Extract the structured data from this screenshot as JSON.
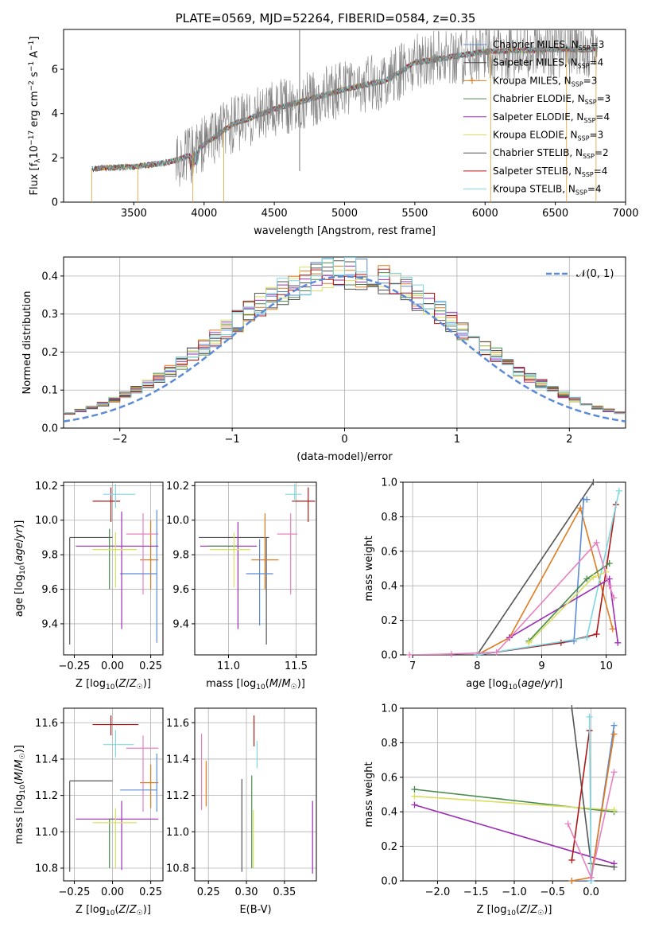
{
  "page_title": "PLATE=0569, MJD=52264, FIBERID=0584, z=0.35",
  "colors": {
    "Chabrier MILES": "#5b8bd6",
    "Salpeter MILES": "#4c4c4c",
    "Kroupa MILES": "#e07b20",
    "Chabrier ELODIE": "#4a8a4a",
    "Salpeter ELODIE": "#9b2db5",
    "Kroupa ELODIE": "#d8e060",
    "Chabrier STELIB": "#555555",
    "Salpeter STELIB": "#b01818",
    "Kroupa STELIB": "#7fd8e0",
    "pink": "#e880c0",
    "gaussian": "#5b8bd6",
    "grid": "#b0b0b0"
  },
  "legend_spectrum": [
    "Chabrier MILES, N_SSP=3",
    "Salpeter MILES, N_SSP=4",
    "Kroupa MILES, N_SSP=3",
    "Chabrier ELODIE, N_SSP=3",
    "Salpeter ELODIE, N_SSP=4",
    "Kroupa ELODIE, N_SSP=3",
    "Chabrier STELIB, N_SSP=2",
    "Salpeter STELIB, N_SSP=4",
    "Kroupa STELIB, N_SSP=4"
  ],
  "legend_hist": "𝒩(0, 1)",
  "chart_data": [
    {
      "id": "spectrum",
      "type": "line",
      "title": "PLATE=0569, MJD=52264, FIBERID=0584, z=0.35",
      "xlabel": "wavelength [Angstrom, rest frame]",
      "ylabel": "Flux [f_λ 10^-17 erg cm^-2 s^-1 A^-1]",
      "xlim": [
        3000,
        7000
      ],
      "ylim": [
        0,
        7.8
      ],
      "xticks": [
        3500,
        4000,
        4500,
        5000,
        5500,
        6000,
        6500,
        7000
      ],
      "yticks": [
        0,
        2,
        4,
        6
      ],
      "continuum": {
        "x": [
          3200,
          3300,
          3500,
          3700,
          3800,
          3900,
          4000,
          4200,
          4500,
          5000,
          5300,
          5500,
          6000,
          6500,
          6800
        ],
        "y": [
          1.5,
          1.55,
          1.6,
          1.75,
          1.9,
          2.1,
          2.6,
          3.5,
          4.2,
          5.1,
          5.5,
          6.3,
          6.8,
          6.9,
          6.9
        ]
      },
      "grid": false
    },
    {
      "id": "residual-hist",
      "type": "line",
      "xlabel": "(data-model)/error",
      "ylabel": "Normed distribution",
      "xlim": [
        -2.5,
        2.5
      ],
      "ylim": [
        0,
        0.45
      ],
      "xticks": [
        -2,
        -1,
        0,
        1,
        2
      ],
      "yticks": [
        0.0,
        0.1,
        0.2,
        0.3,
        0.4
      ],
      "grid": true,
      "bins": 50,
      "series": [
        {
          "name": "𝒩(0, 1)",
          "function": "gaussian",
          "mean": 0,
          "sigma": 1
        }
      ]
    },
    {
      "id": "age-vs-Z",
      "type": "scatter",
      "xlabel": "Z [log10(Z/Z☉)]",
      "ylabel": "age [log10(age/yr)]",
      "xlim": [
        -0.32,
        0.33
      ],
      "ylim": [
        9.22,
        10.22
      ],
      "xticks": [
        -0.25,
        0.0,
        0.25
      ],
      "yticks": [
        9.4,
        9.6,
        9.8,
        10.0,
        10.2
      ],
      "grid": true,
      "points": [
        {
          "c": "Chabrier STELIB",
          "x": -0.28,
          "y": 9.9,
          "xe": [
            0.0,
            0.28
          ],
          "ye": [
            0.62,
            0.0
          ]
        },
        {
          "c": "Salpeter STELIB",
          "x": -0.01,
          "y": 10.11,
          "xe": [
            0.12,
            0.06
          ],
          "ye": [
            0.12,
            0.08
          ]
        },
        {
          "c": "Kroupa STELIB",
          "x": 0.02,
          "y": 10.15,
          "xe": [
            0.08,
            0.13
          ],
          "ye": [
            0.08,
            0.06
          ]
        },
        {
          "c": "Kroupa MILES",
          "x": 0.25,
          "y": 9.77,
          "xe": [
            0.07,
            0.05
          ],
          "ye": [
            0.17,
            0.23
          ]
        },
        {
          "c": "pink",
          "x": 0.2,
          "y": 9.92,
          "xe": [
            0.11,
            0.1
          ],
          "ye": [
            0.35,
            0.12
          ]
        },
        {
          "c": "Chabrier MILES",
          "x": 0.29,
          "y": 9.69,
          "xe": [
            0.24,
            0.0
          ],
          "ye": [
            0.4,
            0.37
          ]
        },
        {
          "c": "Salpeter ELODIE",
          "x": 0.06,
          "y": 9.85,
          "xe": [
            0.3,
            0.24
          ],
          "ye": [
            0.48,
            0.2
          ]
        },
        {
          "c": "Chabrier ELODIE",
          "x": -0.02,
          "y": 9.85,
          "xe": [
            0.0,
            0.02
          ],
          "ye": [
            0.25,
            0.1
          ]
        },
        {
          "c": "Kroupa ELODIE",
          "x": 0.02,
          "y": 9.83,
          "xe": [
            0.15,
            0.14
          ],
          "ye": [
            0.22,
            0.1
          ]
        }
      ]
    },
    {
      "id": "age-vs-mass",
      "type": "scatter",
      "xlabel": "mass [log10(M/M☉)]",
      "ylabel": "",
      "xlim": [
        10.75,
        11.65
      ],
      "ylim": [
        9.22,
        10.22
      ],
      "xticks": [
        11.0,
        11.5
      ],
      "yticks": [
        9.4,
        9.6,
        9.8,
        10.0,
        10.2
      ],
      "grid": true,
      "points": [
        {
          "c": "Chabrier STELIB",
          "x": 11.28,
          "y": 9.9,
          "xe": [
            0.5,
            0.02
          ],
          "ye": [
            0.62,
            0.0
          ]
        },
        {
          "c": "Salpeter STELIB",
          "x": 11.59,
          "y": 10.11,
          "xe": [
            0.12,
            0.05
          ],
          "ye": [
            0.12,
            0.08
          ]
        },
        {
          "c": "Kroupa STELIB",
          "x": 11.49,
          "y": 10.15,
          "xe": [
            0.07,
            0.05
          ],
          "ye": [
            0.04,
            0.06
          ]
        },
        {
          "c": "Kroupa MILES",
          "x": 11.27,
          "y": 9.77,
          "xe": [
            0.1,
            0.1
          ],
          "ye": [
            0.17,
            0.27
          ]
        },
        {
          "c": "pink",
          "x": 11.46,
          "y": 9.92,
          "xe": [
            0.1,
            0.05
          ],
          "ye": [
            0.35,
            0.12
          ]
        },
        {
          "c": "Chabrier MILES",
          "x": 11.23,
          "y": 9.69,
          "xe": [
            0.1,
            0.1
          ],
          "ye": [
            0.3,
            0.2
          ]
        },
        {
          "c": "Salpeter ELODIE",
          "x": 11.07,
          "y": 9.85,
          "xe": [
            0.28,
            0.14
          ],
          "ye": [
            0.48,
            0.14
          ]
        },
        {
          "c": "Chabrier ELODIE",
          "x": 11.07,
          "y": 9.85,
          "xe": [
            0.22,
            0.0
          ],
          "ye": [
            0.0,
            0.0
          ]
        },
        {
          "c": "Kroupa ELODIE",
          "x": 11.04,
          "y": 9.83,
          "xe": [
            0.18,
            0.12
          ],
          "ye": [
            0.22,
            0.1
          ]
        }
      ]
    },
    {
      "id": "weight-vs-age",
      "type": "line",
      "xlabel": "age [log10(age/yr)]",
      "ylabel": "mass weight",
      "xlim": [
        6.85,
        10.3
      ],
      "ylim": [
        0,
        1.0
      ],
      "xticks": [
        7,
        8,
        9,
        10
      ],
      "yticks": [
        0.0,
        0.2,
        0.4,
        0.6,
        0.8,
        1.0
      ],
      "grid": true,
      "series": [
        {
          "c": "Chabrier STELIB",
          "x": [
            8.0,
            9.8
          ],
          "y": [
            0.0,
            1.0
          ]
        },
        {
          "c": "Kroupa MILES",
          "x": [
            8.0,
            8.5,
            9.6,
            10.1
          ],
          "y": [
            0.0,
            0.1,
            0.85,
            0.15
          ]
        },
        {
          "c": "Chabrier MILES",
          "x": [
            8.0,
            9.5,
            9.65,
            9.7
          ],
          "y": [
            0.0,
            0.08,
            0.9,
            0.9
          ]
        },
        {
          "c": "Salpeter STELIB",
          "x": [
            8.0,
            9.3,
            9.85,
            10.15
          ],
          "y": [
            0.0,
            0.07,
            0.12,
            0.87
          ]
        },
        {
          "c": "Kroupa STELIB",
          "x": [
            8.0,
            9.7,
            10.2
          ],
          "y": [
            0.0,
            0.1,
            0.95
          ]
        },
        {
          "c": "Salpeter ELODIE",
          "x": [
            8.5,
            10.05,
            10.18
          ],
          "y": [
            0.1,
            0.44,
            0.07
          ]
        },
        {
          "c": "Chabrier ELODIE",
          "x": [
            8.8,
            9.7,
            10.05
          ],
          "y": [
            0.08,
            0.44,
            0.53
          ]
        },
        {
          "c": "Kroupa ELODIE",
          "x": [
            8.8,
            9.8,
            10.0
          ],
          "y": [
            0.07,
            0.45,
            0.48
          ]
        },
        {
          "c": "pink",
          "x": [
            6.95,
            7.6,
            8.3,
            9.85,
            10.05,
            10.12
          ],
          "y": [
            0.0,
            0.005,
            0.015,
            0.65,
            0.4,
            0.33
          ]
        }
      ]
    },
    {
      "id": "mass-vs-Z",
      "type": "scatter",
      "xlabel": "Z [log10(Z/Z☉)]",
      "ylabel": "mass [log10(M/M☉)]",
      "xlim": [
        -0.32,
        0.33
      ],
      "ylim": [
        10.73,
        11.68
      ],
      "xticks": [
        -0.25,
        0.0,
        0.25
      ],
      "yticks": [
        10.8,
        11.0,
        11.2,
        11.4,
        11.6
      ],
      "grid": true,
      "points": [
        {
          "c": "Chabrier STELIB",
          "x": -0.28,
          "y": 11.28,
          "xe": [
            0.0,
            0.28
          ],
          "ye": [
            0.5,
            0.0
          ]
        },
        {
          "c": "Salpeter STELIB",
          "x": -0.01,
          "y": 11.59,
          "xe": [
            0.12,
            0.18
          ],
          "ye": [
            0.06,
            0.05
          ]
        },
        {
          "c": "Kroupa STELIB",
          "x": 0.02,
          "y": 11.48,
          "xe": [
            0.08,
            0.12
          ],
          "ye": [
            0.07,
            0.08
          ]
        },
        {
          "c": "Kroupa MILES",
          "x": 0.25,
          "y": 11.27,
          "xe": [
            0.07,
            0.05
          ],
          "ye": [
            0.14,
            0.1
          ]
        },
        {
          "c": "pink",
          "x": 0.2,
          "y": 11.46,
          "xe": [
            0.11,
            0.1
          ],
          "ye": [
            0.35,
            0.07
          ]
        },
        {
          "c": "Chabrier MILES",
          "x": 0.29,
          "y": 11.23,
          "xe": [
            0.24,
            0.0
          ],
          "ye": [
            0.12,
            0.2
          ]
        },
        {
          "c": "Salpeter ELODIE",
          "x": 0.06,
          "y": 11.07,
          "xe": [
            0.3,
            0.24
          ],
          "ye": [
            0.28,
            0.1
          ]
        },
        {
          "c": "Chabrier ELODIE",
          "x": -0.02,
          "y": 11.07,
          "xe": [
            0.0,
            0.02
          ],
          "ye": [
            0.27,
            0.0
          ]
        },
        {
          "c": "Kroupa ELODIE",
          "x": 0.02,
          "y": 11.05,
          "xe": [
            0.15,
            0.14
          ],
          "ye": [
            0.25,
            0.08
          ]
        }
      ]
    },
    {
      "id": "mass-vs-ebv",
      "type": "scatter",
      "xlabel": "E(B-V)",
      "ylabel": "",
      "xlim": [
        0.232,
        0.392
      ],
      "ylim": [
        10.73,
        11.68
      ],
      "xticks": [
        0.25,
        0.3,
        0.35
      ],
      "yticks": [
        10.8,
        11.0,
        11.2,
        11.4,
        11.6
      ],
      "grid": true,
      "points": [
        {
          "c": "pink",
          "x": 0.241,
          "y": 11.33,
          "xe": [
            0,
            0
          ],
          "ye": [
            0.21,
            0.21
          ]
        },
        {
          "c": "Kroupa MILES",
          "x": 0.247,
          "y": 11.26,
          "xe": [
            0,
            0
          ],
          "ye": [
            0.12,
            0.13
          ]
        },
        {
          "c": "Chabrier STELIB",
          "x": 0.294,
          "y": 11.03,
          "xe": [
            0,
            0
          ],
          "ye": [
            0.25,
            0.26
          ]
        },
        {
          "c": "Chabrier ELODIE",
          "x": 0.307,
          "y": 11.07,
          "xe": [
            0,
            0
          ],
          "ye": [
            0.27,
            0.24
          ]
        },
        {
          "c": "Kroupa ELODIE",
          "x": 0.309,
          "y": 11.0,
          "xe": [
            0,
            0
          ],
          "ye": [
            0.2,
            0.12
          ]
        },
        {
          "c": "Salpeter STELIB",
          "x": 0.31,
          "y": 11.55,
          "xe": [
            0,
            0
          ],
          "ye": [
            0.08,
            0.09
          ]
        },
        {
          "c": "Kroupa STELIB",
          "x": 0.314,
          "y": 11.42,
          "xe": [
            0,
            0
          ],
          "ye": [
            0.07,
            0.08
          ]
        },
        {
          "c": "Salpeter ELODIE",
          "x": 0.387,
          "y": 10.97,
          "xe": [
            0,
            0
          ],
          "ye": [
            0.2,
            0.2
          ]
        }
      ]
    },
    {
      "id": "weight-vs-Z",
      "type": "line",
      "xlabel": "Z [log10(Z/Z☉)]",
      "ylabel": "mass weight",
      "xlim": [
        -2.45,
        0.45
      ],
      "ylim": [
        0,
        1.0
      ],
      "xticks": [
        -2.0,
        -1.5,
        -1.0,
        -0.5,
        0.0
      ],
      "yticks": [
        0.0,
        0.2,
        0.4,
        0.6,
        0.8,
        1.0
      ],
      "grid": true,
      "series": [
        {
          "c": "Chabrier ELODIE",
          "x": [
            -2.3,
            0.3
          ],
          "y": [
            0.53,
            0.4
          ]
        },
        {
          "c": "Kroupa ELODIE",
          "x": [
            -2.3,
            0.3
          ],
          "y": [
            0.49,
            0.41
          ]
        },
        {
          "c": "Salpeter ELODIE",
          "x": [
            -2.3,
            0.3
          ],
          "y": [
            0.44,
            0.1
          ]
        },
        {
          "c": "Chabrier STELIB",
          "x": [
            -0.25,
            0.0,
            0.3
          ],
          "y": [
            1.0,
            0.1,
            0.08
          ]
        },
        {
          "c": "Chabrier MILES",
          "x": [
            -0.25,
            0.0,
            0.3
          ],
          "y": [
            0.0,
            0.0,
            0.9
          ]
        },
        {
          "c": "Kroupa MILES",
          "x": [
            -0.25,
            0.0,
            0.3
          ],
          "y": [
            0.0,
            0.02,
            0.85
          ]
        },
        {
          "c": "Salpeter STELIB",
          "x": [
            -0.25,
            -0.02
          ],
          "y": [
            0.12,
            0.87
          ]
        },
        {
          "c": "Kroupa STELIB",
          "x": [
            -0.02,
            0.0
          ],
          "y": [
            0.95,
            0.0
          ]
        },
        {
          "c": "pink",
          "x": [
            -0.3,
            0.0,
            0.3
          ],
          "y": [
            0.33,
            0.02,
            0.63
          ]
        }
      ]
    }
  ]
}
